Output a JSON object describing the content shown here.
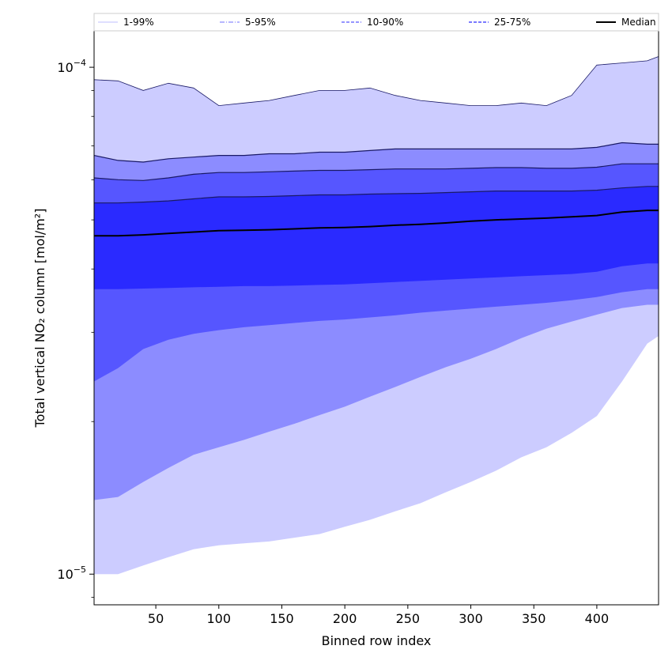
{
  "chart_data": {
    "type": "area",
    "xlabel": "Binned row index",
    "ylabel": "Total vertical NO₂ column [mol/m²]",
    "xlim": [
      1,
      449
    ],
    "ylim": [
      8.7e-06,
      0.000118
    ],
    "yscale": "log",
    "grid": false,
    "legend_placement": "top",
    "x_ticks": [
      50,
      100,
      150,
      200,
      250,
      300,
      350,
      400
    ],
    "x_tick_labels": [
      "50",
      "100",
      "150",
      "200",
      "250",
      "300",
      "350",
      "400"
    ],
    "y_ticks": [
      1e-05,
      0.0001
    ],
    "y_tick_labels": [
      {
        "base": "10",
        "exp": "−5"
      },
      {
        "base": "10",
        "exp": "−4"
      }
    ],
    "x": [
      1,
      20,
      40,
      60,
      80,
      100,
      120,
      140,
      160,
      180,
      200,
      220,
      240,
      260,
      280,
      300,
      320,
      340,
      360,
      380,
      400,
      420,
      440,
      449
    ],
    "bands": [
      {
        "name": "1-99%",
        "color": "#ccccff",
        "lower": [
          1e-05,
          1e-05,
          1.04e-05,
          1.08e-05,
          1.12e-05,
          1.14e-05,
          1.15e-05,
          1.16e-05,
          1.18e-05,
          1.2e-05,
          1.24e-05,
          1.28e-05,
          1.33e-05,
          1.38e-05,
          1.45e-05,
          1.52e-05,
          1.6e-05,
          1.7e-05,
          1.78e-05,
          1.9e-05,
          2.05e-05,
          2.4e-05,
          2.85e-05,
          2.95e-05
        ],
        "upper": [
          9.45e-05,
          9.4e-05,
          9e-05,
          9.3e-05,
          9.1e-05,
          8.4e-05,
          8.5e-05,
          8.6e-05,
          8.8e-05,
          9e-05,
          9e-05,
          9.1e-05,
          8.8e-05,
          8.6e-05,
          8.5e-05,
          8.4e-05,
          8.4e-05,
          8.5e-05,
          8.4e-05,
          8.8e-05,
          0.000101,
          0.000102,
          0.000103,
          0.000105
        ]
      },
      {
        "name": "5-95%",
        "color": "#8c8cff",
        "lower": [
          1.4e-05,
          1.42e-05,
          1.52e-05,
          1.62e-05,
          1.72e-05,
          1.78e-05,
          1.84e-05,
          1.91e-05,
          1.98e-05,
          2.06e-05,
          2.14e-05,
          2.24e-05,
          2.34e-05,
          2.45e-05,
          2.56e-05,
          2.66e-05,
          2.78e-05,
          2.92e-05,
          3.05e-05,
          3.15e-05,
          3.25e-05,
          3.35e-05,
          3.4e-05,
          3.4e-05
        ],
        "upper": [
          6.7e-05,
          6.55e-05,
          6.5e-05,
          6.6e-05,
          6.65e-05,
          6.7e-05,
          6.7e-05,
          6.75e-05,
          6.75e-05,
          6.8e-05,
          6.8e-05,
          6.85e-05,
          6.9e-05,
          6.9e-05,
          6.9e-05,
          6.9e-05,
          6.9e-05,
          6.9e-05,
          6.9e-05,
          6.9e-05,
          6.95e-05,
          7.1e-05,
          7.05e-05,
          7.05e-05
        ]
      },
      {
        "name": "10-90%",
        "color": "#5656ff",
        "lower": [
          2.4e-05,
          2.55e-05,
          2.78e-05,
          2.9e-05,
          2.98e-05,
          3.03e-05,
          3.07e-05,
          3.1e-05,
          3.13e-05,
          3.16e-05,
          3.18e-05,
          3.21e-05,
          3.24e-05,
          3.28e-05,
          3.31e-05,
          3.34e-05,
          3.37e-05,
          3.4e-05,
          3.43e-05,
          3.47e-05,
          3.52e-05,
          3.6e-05,
          3.65e-05,
          3.65e-05
        ],
        "upper": [
          6.05e-05,
          6e-05,
          5.98e-05,
          6.05e-05,
          6.15e-05,
          6.2e-05,
          6.2e-05,
          6.22e-05,
          6.24e-05,
          6.26e-05,
          6.26e-05,
          6.28e-05,
          6.3e-05,
          6.3e-05,
          6.3e-05,
          6.32e-05,
          6.34e-05,
          6.34e-05,
          6.32e-05,
          6.32e-05,
          6.35e-05,
          6.45e-05,
          6.45e-05,
          6.45e-05
        ]
      },
      {
        "name": "25-75%",
        "color": "#2a2aff",
        "lower": [
          3.65e-05,
          3.65e-05,
          3.66e-05,
          3.67e-05,
          3.68e-05,
          3.69e-05,
          3.7e-05,
          3.7e-05,
          3.71e-05,
          3.72e-05,
          3.73e-05,
          3.75e-05,
          3.77e-05,
          3.79e-05,
          3.81e-05,
          3.83e-05,
          3.85e-05,
          3.87e-05,
          3.89e-05,
          3.91e-05,
          3.95e-05,
          4.05e-05,
          4.1e-05,
          4.1e-05
        ],
        "upper": [
          5.4e-05,
          5.4e-05,
          5.42e-05,
          5.45e-05,
          5.5e-05,
          5.55e-05,
          5.55e-05,
          5.56e-05,
          5.58e-05,
          5.6e-05,
          5.6e-05,
          5.62e-05,
          5.63e-05,
          5.64e-05,
          5.66e-05,
          5.68e-05,
          5.7e-05,
          5.7e-05,
          5.7e-05,
          5.7e-05,
          5.72e-05,
          5.78e-05,
          5.82e-05,
          5.82e-05
        ]
      }
    ],
    "median": {
      "name": "Median",
      "color": "#000000",
      "values": [
        4.65e-05,
        4.65e-05,
        4.67e-05,
        4.7e-05,
        4.73e-05,
        4.76e-05,
        4.77e-05,
        4.78e-05,
        4.8e-05,
        4.82e-05,
        4.83e-05,
        4.85e-05,
        4.88e-05,
        4.9e-05,
        4.93e-05,
        4.97e-05,
        5e-05,
        5.02e-05,
        5.04e-05,
        5.07e-05,
        5.1e-05,
        5.18e-05,
        5.22e-05,
        5.22e-05
      ]
    },
    "legend": [
      {
        "label": "1-99%",
        "color": "#ccccff",
        "style": "solid"
      },
      {
        "label": "5-95%",
        "color": "#8c8cff",
        "style": "dashdot"
      },
      {
        "label": "10-90%",
        "color": "#5656ff",
        "style": "dashed"
      },
      {
        "label": "25-75%",
        "color": "#2a2aff",
        "style": "dashed"
      },
      {
        "label": "Median",
        "color": "#000000",
        "style": "solid"
      }
    ]
  }
}
